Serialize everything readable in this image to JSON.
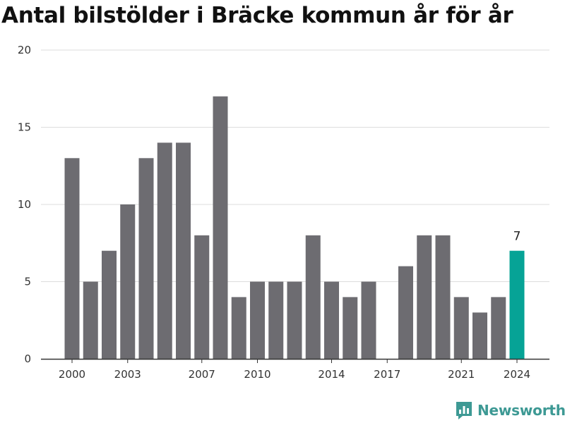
{
  "chart_data": {
    "type": "bar",
    "title": "Antal bilstölder i Bräcke kommun år för år",
    "categories": [
      "2000",
      "2001",
      "2002",
      "2003",
      "2004",
      "2005",
      "2006",
      "2007",
      "2008",
      "2009",
      "2010",
      "2011",
      "2012",
      "2013",
      "2014",
      "2015",
      "2016",
      "2017",
      "2018",
      "2019",
      "2020",
      "2021",
      "2022",
      "2023",
      "2024"
    ],
    "values": [
      13,
      5,
      7,
      10,
      13,
      14,
      14,
      8,
      17,
      4,
      5,
      5,
      5,
      8,
      5,
      4,
      5,
      0,
      6,
      8,
      8,
      4,
      3,
      4,
      7
    ],
    "x_tick_labels": [
      "2000",
      "2003",
      "2007",
      "2010",
      "2014",
      "2017",
      "2021",
      "2024"
    ],
    "y_ticks": [
      "0",
      "5",
      "10",
      "15",
      "20"
    ],
    "ylim": [
      0,
      20
    ],
    "grid": true,
    "highlight_index": 24,
    "highlight_label": "7",
    "colors": {
      "bar": "#6d6c71",
      "highlight": "#06a396",
      "grid": "#dddddd",
      "axis": "#333333"
    }
  },
  "brand": {
    "name": "Newsworthy",
    "icon": "newsworthy-chart-icon",
    "color": "#3d9994"
  }
}
